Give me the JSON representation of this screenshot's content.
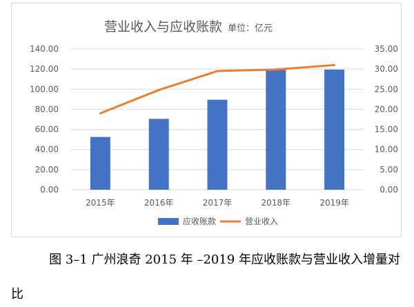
{
  "chart_data": {
    "type": "bar+line",
    "title": "营业收入与应收账款",
    "unit_label": "单位：亿元",
    "categories": [
      "2015年",
      "2016年",
      "2017年",
      "2018年",
      "2019年"
    ],
    "series": [
      {
        "name": "应收账款",
        "type": "bar",
        "axis": "left",
        "color": "#4472C4",
        "values": [
          52.5,
          70.5,
          89.5,
          119.5,
          119.5
        ]
      },
      {
        "name": "营业收入",
        "type": "line",
        "axis": "right",
        "color": "#ED7D31",
        "values": [
          19.0,
          24.8,
          29.5,
          29.9,
          31.0
        ]
      }
    ],
    "y_left": {
      "min": 0,
      "max": 140,
      "step": 20,
      "tick_labels": [
        "0.00",
        "20.00",
        "40.00",
        "60.00",
        "80.00",
        "100.00",
        "120.00",
        "140.00"
      ]
    },
    "y_right": {
      "min": 0,
      "max": 35,
      "step": 5,
      "tick_labels": [
        "0.00",
        "5.00",
        "10.00",
        "15.00",
        "20.00",
        "25.00",
        "30.00",
        "35.00"
      ]
    },
    "grid": true,
    "legend_position": "bottom"
  },
  "caption": {
    "line1": "图 3–1 广州浪奇 2015 年 –2019 年应收账款与营业收入增量对",
    "line2": "比"
  }
}
